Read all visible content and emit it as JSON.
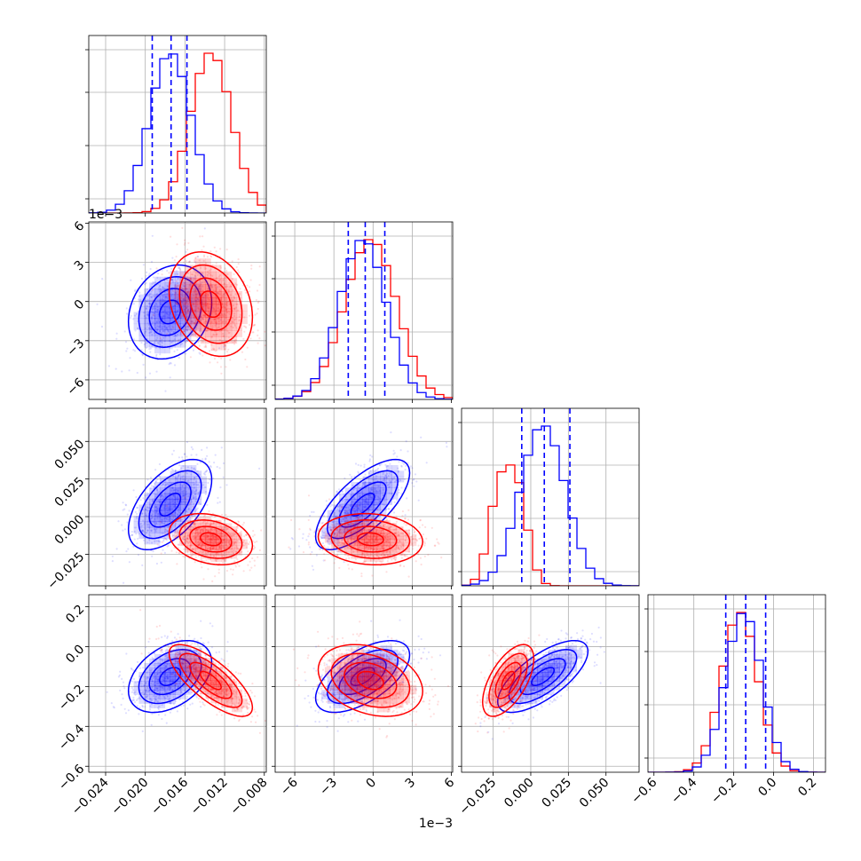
{
  "chart_data": {
    "type": "corner",
    "description_free": true,
    "parameters": [
      {
        "ticks": [
          -0.024,
          -0.02,
          -0.016,
          -0.012,
          -0.008
        ],
        "tick_labels": [
          "−0.024",
          "−0.020",
          "−0.016",
          "−0.012",
          "−0.008"
        ],
        "range": [
          -0.0257,
          -0.0078
        ],
        "offset_label": ""
      },
      {
        "ticks": [
          -0.006,
          -0.003,
          0.0,
          0.003,
          0.006
        ],
        "tick_labels": [
          "−6",
          "−3",
          "0",
          "3",
          "6"
        ],
        "range": [
          -0.0075,
          0.0061
        ],
        "offset_label": "1e−3"
      },
      {
        "ticks": [
          -0.025,
          0.0,
          0.025,
          0.05
        ],
        "tick_labels": [
          "−0.025",
          "0.000",
          "0.025",
          "0.050"
        ],
        "range": [
          -0.046,
          0.072
        ],
        "offset_label": ""
      },
      {
        "ticks": [
          -0.6,
          -0.4,
          -0.2,
          0.0,
          0.2
        ],
        "tick_labels": [
          "−0.6",
          "−0.4",
          "−0.2",
          "0.0",
          "0.2"
        ],
        "range": [
          -0.63,
          0.26
        ],
        "offset_label": ""
      }
    ],
    "series": [
      {
        "color": "#0000ff",
        "means": [
          -0.0175,
          -0.0008,
          0.008,
          -0.15
        ],
        "sds": [
          0.0021,
          0.0018,
          0.015,
          0.09
        ],
        "quantile_lines": [
          [
            -0.0193,
            -0.0174,
            -0.0158
          ],
          [
            -0.0019,
            -0.0006,
            0.0009
          ],
          [
            -0.006,
            0.009,
            0.026
          ],
          [
            -0.24,
            -0.14,
            -0.04
          ]
        ]
      },
      {
        "color": "#ff0000",
        "means": [
          -0.0134,
          -0.0002,
          -0.015,
          -0.17
        ],
        "sds": [
          0.0021,
          0.002,
          0.0085,
          0.09
        ],
        "quantile_lines": []
      }
    ],
    "correlations": {
      "blue": {
        "0-1": 0.2,
        "0-2": 0.55,
        "0-3": 0.4,
        "1-2": 0.7,
        "1-3": 0.6,
        "2-3": 0.7
      },
      "red": {
        "0-1": -0.25,
        "0-2": -0.25,
        "0-3": -0.75,
        "1-2": -0.1,
        "1-3": -0.3,
        "2-3": 0.6
      }
    },
    "grid": true,
    "legend": "none"
  }
}
